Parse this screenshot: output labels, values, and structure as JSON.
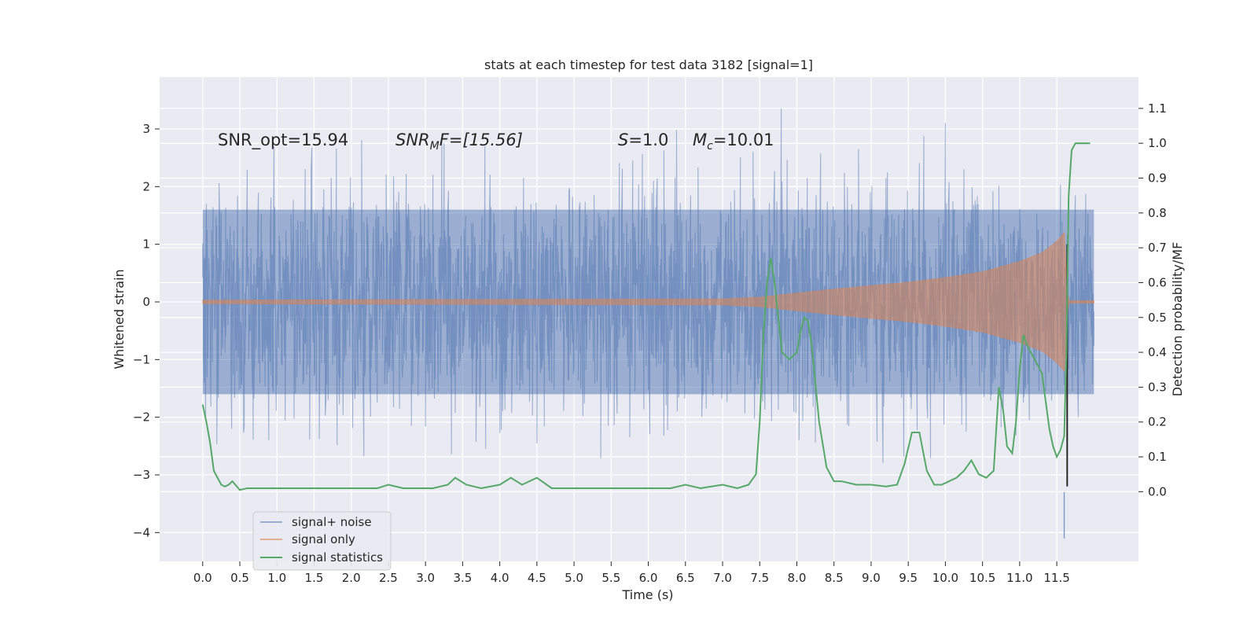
{
  "chart_data": {
    "type": "line",
    "title": "stats at each timestep for test data 3182 [signal=1]",
    "xlabel": "Time (s)",
    "ylabel": "Whitened strain",
    "ylabel_right": "Detection probability/MF",
    "xlim": [
      -0.58,
      12.6
    ],
    "ylim": [
      -4.5,
      3.9
    ],
    "ylim_right": [
      -0.2,
      1.19
    ],
    "x_ticks": [
      "0.0",
      "0.5",
      "1.0",
      "1.5",
      "2.0",
      "2.5",
      "3.0",
      "3.5",
      "4.0",
      "4.5",
      "5.0",
      "5.5",
      "6.0",
      "6.5",
      "7.0",
      "7.5",
      "8.0",
      "8.5",
      "9.0",
      "9.5",
      "10.0",
      "10.5",
      "11.0",
      "11.5"
    ],
    "y_ticks": [
      "−4",
      "−3",
      "−2",
      "−1",
      "0",
      "1",
      "2",
      "3"
    ],
    "y_ticks_right": [
      "0.0",
      "0.1",
      "0.2",
      "0.3",
      "0.4",
      "0.5",
      "0.6",
      "0.7",
      "0.8",
      "0.9",
      "1.0",
      "1.1"
    ],
    "grid": true,
    "legend_position": "lower-left",
    "annotations": [
      {
        "text": "SNR_opt=15.94"
      },
      {
        "text": "SNR_MF=[15.56]",
        "math_main": "SNR",
        "math_sub": "M",
        "math_tail": "F=[15.56]"
      },
      {
        "text": "S=1.0",
        "math_main": "S",
        "math_tail": "=1.0"
      },
      {
        "text": "M_c=10.01",
        "math_main": "M",
        "math_sub": "c",
        "math_tail": "=10.01"
      }
    ],
    "series": [
      {
        "name": "signal+ noise",
        "color": "#4c72b0",
        "axis": "left",
        "kind": "noisy-strain",
        "x_range": [
          0.0,
          12.0
        ],
        "typical_band": [
          -1.6,
          1.6
        ],
        "min": -4.1,
        "max": 3.6
      },
      {
        "name": "signal only",
        "color": "#dd8452",
        "axis": "left",
        "kind": "chirp",
        "x": [
          0.0,
          7.0,
          7.5,
          8.0,
          8.5,
          9.0,
          9.5,
          10.0,
          10.5,
          11.0,
          11.3,
          11.5,
          11.6,
          11.65,
          12.0
        ],
        "envelope": [
          0.03,
          0.05,
          0.08,
          0.15,
          0.22,
          0.28,
          0.34,
          0.42,
          0.52,
          0.7,
          0.85,
          1.05,
          1.2,
          0.02,
          0.02
        ]
      },
      {
        "name": "signal statistics",
        "color": "#55a868",
        "axis": "right",
        "x": [
          0.0,
          0.05,
          0.1,
          0.15,
          0.2,
          0.25,
          0.3,
          0.35,
          0.4,
          0.5,
          0.6,
          0.8,
          1.0,
          1.2,
          1.4,
          1.6,
          1.8,
          2.0,
          2.2,
          2.35,
          2.5,
          2.7,
          2.9,
          3.1,
          3.3,
          3.4,
          3.55,
          3.75,
          4.0,
          4.15,
          4.3,
          4.5,
          4.7,
          5.0,
          5.3,
          5.6,
          6.0,
          6.3,
          6.5,
          6.7,
          7.0,
          7.2,
          7.35,
          7.45,
          7.5,
          7.55,
          7.6,
          7.65,
          7.7,
          7.75,
          7.8,
          7.9,
          8.0,
          8.05,
          8.1,
          8.15,
          8.2,
          8.3,
          8.4,
          8.5,
          8.6,
          8.8,
          9.0,
          9.2,
          9.35,
          9.45,
          9.55,
          9.65,
          9.75,
          9.85,
          9.95,
          10.05,
          10.15,
          10.25,
          10.35,
          10.45,
          10.55,
          10.65,
          10.72,
          10.78,
          10.83,
          10.9,
          10.95,
          11.0,
          11.05,
          11.1,
          11.2,
          11.3,
          11.4,
          11.45,
          11.5,
          11.55,
          11.6,
          11.63,
          11.66,
          11.7,
          11.75,
          11.8,
          11.85,
          11.95
        ],
        "values": [
          0.25,
          0.2,
          0.14,
          0.06,
          0.04,
          0.02,
          0.015,
          0.02,
          0.03,
          0.005,
          0.01,
          0.01,
          0.01,
          0.01,
          0.01,
          0.01,
          0.01,
          0.01,
          0.01,
          0.01,
          0.02,
          0.01,
          0.01,
          0.01,
          0.02,
          0.04,
          0.02,
          0.01,
          0.02,
          0.04,
          0.02,
          0.04,
          0.01,
          0.01,
          0.01,
          0.01,
          0.01,
          0.01,
          0.02,
          0.01,
          0.02,
          0.01,
          0.02,
          0.05,
          0.2,
          0.45,
          0.6,
          0.67,
          0.6,
          0.5,
          0.4,
          0.38,
          0.4,
          0.46,
          0.5,
          0.49,
          0.42,
          0.2,
          0.07,
          0.03,
          0.03,
          0.02,
          0.02,
          0.015,
          0.02,
          0.08,
          0.17,
          0.17,
          0.06,
          0.02,
          0.02,
          0.03,
          0.04,
          0.06,
          0.09,
          0.05,
          0.04,
          0.06,
          0.3,
          0.23,
          0.13,
          0.11,
          0.2,
          0.35,
          0.45,
          0.42,
          0.38,
          0.34,
          0.18,
          0.13,
          0.1,
          0.12,
          0.16,
          0.4,
          0.85,
          0.98,
          1.0,
          1.0,
          1.0,
          1.0
        ]
      }
    ]
  }
}
